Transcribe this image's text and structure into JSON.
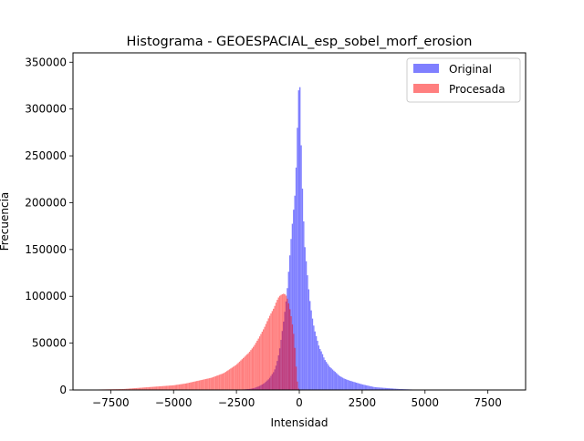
{
  "chart_data": {
    "type": "bar",
    "title": "Histograma - GEOESPACIAL_esp_sobel_morf_erosion",
    "xlabel": "Intensidad",
    "ylabel": "Frecuencia",
    "xlim": [
      -9000,
      9000
    ],
    "ylim": [
      0,
      360000
    ],
    "x_ticks": [
      -7500,
      -5000,
      -2500,
      0,
      2500,
      5000,
      7500
    ],
    "x_tick_labels": [
      "−7500",
      "−5000",
      "−2500",
      "0",
      "2500",
      "5000",
      "7500"
    ],
    "y_ticks": [
      0,
      50000,
      100000,
      150000,
      200000,
      250000,
      300000,
      350000
    ],
    "y_tick_labels": [
      "0",
      "50000",
      "100000",
      "150000",
      "200000",
      "250000",
      "300000",
      "350000"
    ],
    "grid": false,
    "legend_position": "top-right",
    "series": [
      {
        "name": "Original",
        "color": "#0000ff",
        "alpha": 0.5,
        "x": [
          -5000,
          -4000,
          -3000,
          -2500,
          -2000,
          -1800,
          -1600,
          -1400,
          -1200,
          -1000,
          -900,
          -800,
          -700,
          -600,
          -500,
          -400,
          -300,
          -200,
          -150,
          -100,
          -50,
          0,
          30,
          60,
          100,
          150,
          200,
          300,
          400,
          500,
          600,
          700,
          800,
          900,
          1000,
          1200,
          1400,
          1600,
          1800,
          2000,
          2500,
          3000,
          3500,
          4000,
          4500,
          5000,
          5300
        ],
        "y": [
          0,
          0,
          0,
          0,
          1000,
          2000,
          4000,
          7000,
          12000,
          20000,
          28000,
          40000,
          58000,
          78000,
          100000,
          135000,
          170000,
          200000,
          215000,
          260000,
          300000,
          340000,
          320000,
          280000,
          230000,
          200000,
          160000,
          130000,
          100000,
          80000,
          65000,
          55000,
          45000,
          40000,
          33000,
          25000,
          20000,
          15000,
          12000,
          10000,
          6000,
          3000,
          2000,
          1000,
          500,
          200,
          0
        ]
      },
      {
        "name": "Procesada",
        "color": "#ff0000",
        "alpha": 0.5,
        "x": [
          -8700,
          -8000,
          -7000,
          -6500,
          -6000,
          -5500,
          -5000,
          -4500,
          -4000,
          -3500,
          -3000,
          -2500,
          -2000,
          -1800,
          -1600,
          -1400,
          -1200,
          -1000,
          -900,
          -800,
          -700,
          -600,
          -500,
          -400,
          -300,
          -200,
          -150,
          -100,
          -50,
          0
        ],
        "y": [
          0,
          500,
          1000,
          2000,
          3000,
          4000,
          5000,
          7000,
          10000,
          13000,
          18000,
          27000,
          40000,
          47000,
          56000,
          66000,
          78000,
          88000,
          95000,
          100000,
          102000,
          103000,
          100000,
          90000,
          75000,
          55000,
          35000,
          15000,
          3000,
          0
        ]
      }
    ]
  }
}
